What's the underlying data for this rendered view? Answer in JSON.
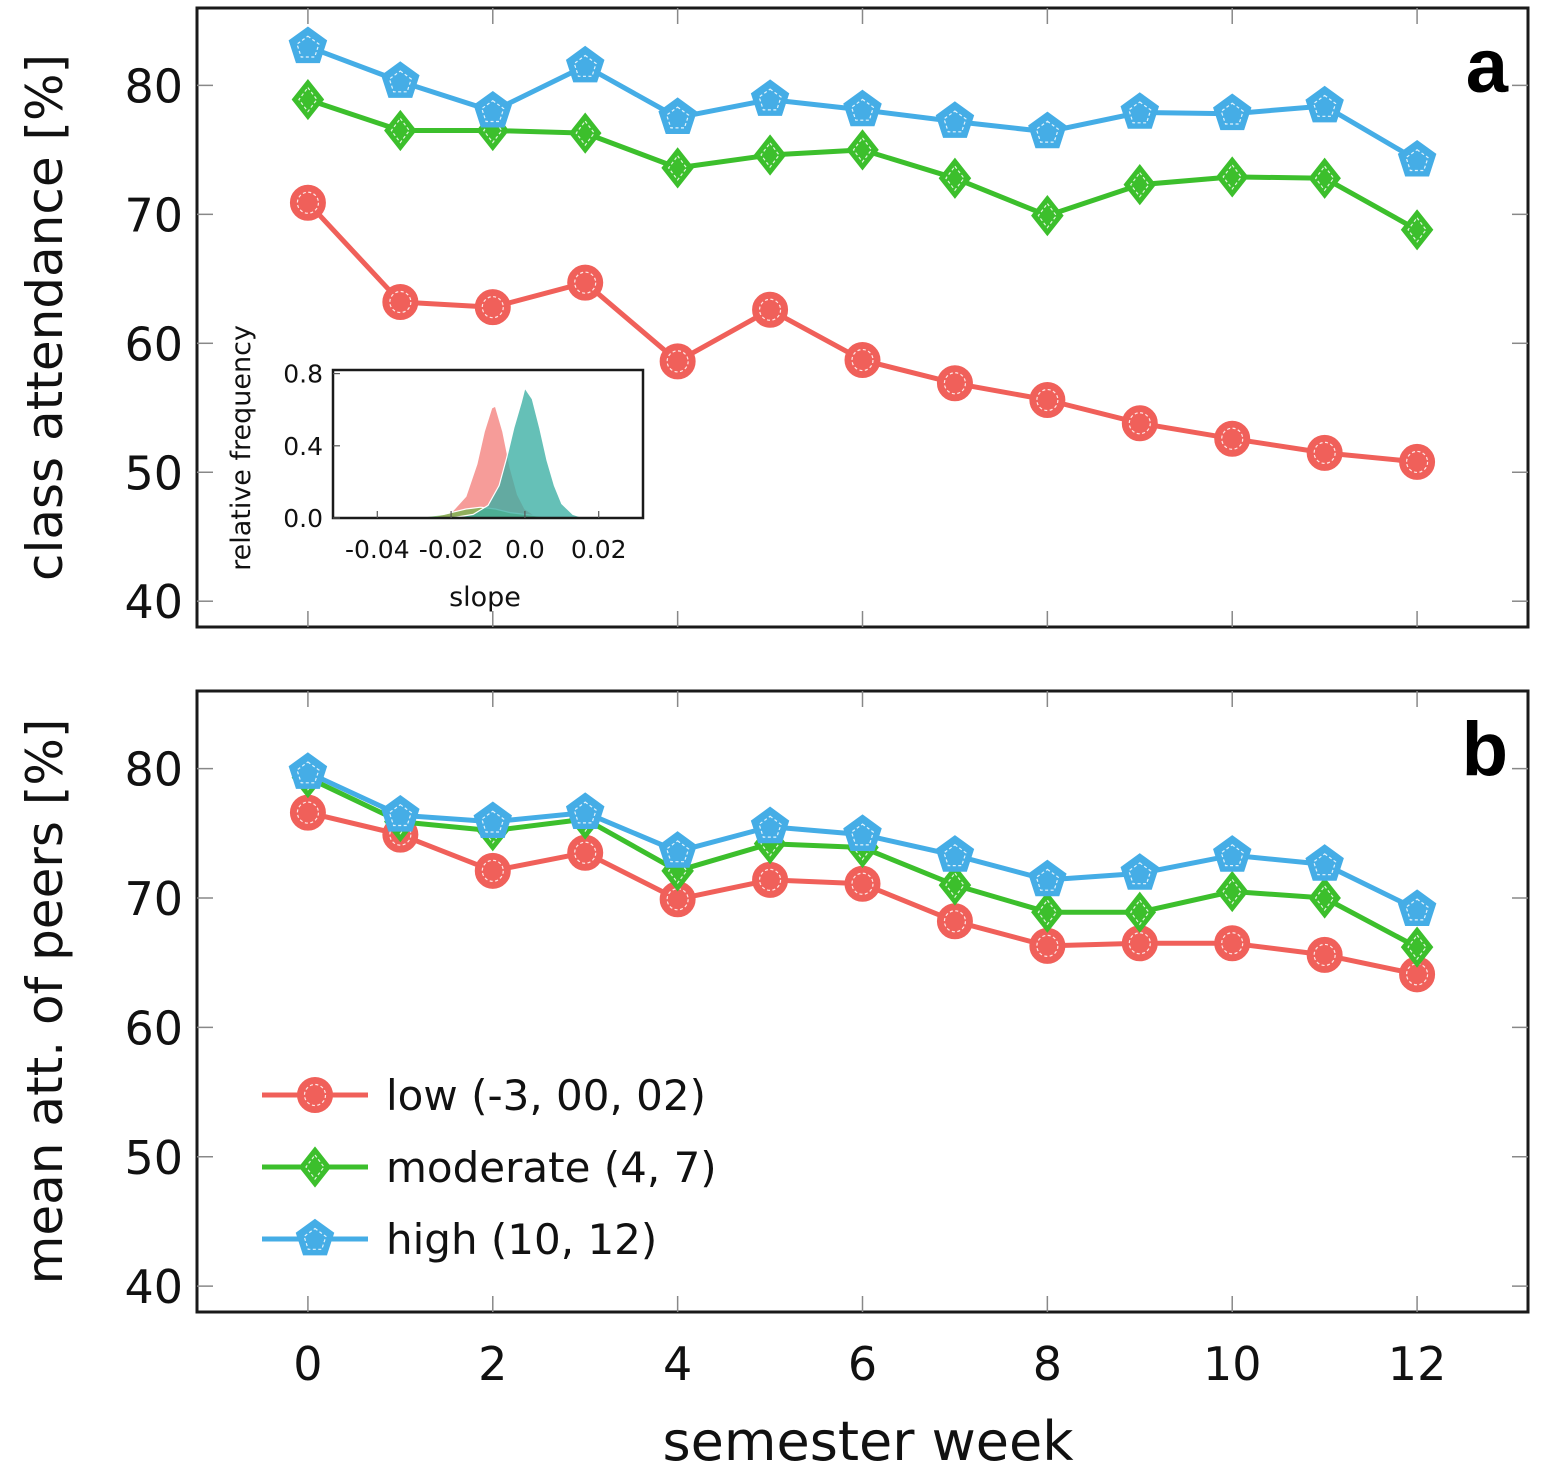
{
  "chart_data": [
    {
      "type": "line",
      "panel_label": "a",
      "ylabel": "class attendance [%]",
      "xlabel": "",
      "ylim": [
        38,
        86
      ],
      "yticks": [
        40,
        50,
        60,
        70,
        80
      ],
      "xlim": [
        -1.2,
        13.2
      ],
      "x": [
        0,
        1,
        2,
        3,
        4,
        5,
        6,
        7,
        8,
        9,
        10,
        11,
        12
      ],
      "series": [
        {
          "name": "low (-3, 00, 02)",
          "marker": "circle",
          "color": "#f0605a",
          "values": [
            70.9,
            63.2,
            62.8,
            64.7,
            58.6,
            62.6,
            58.7,
            56.9,
            55.6,
            53.8,
            52.6,
            51.5,
            50.8
          ]
        },
        {
          "name": "moderate (4, 7)",
          "marker": "diamond",
          "color": "#3cbf2c",
          "values": [
            78.9,
            76.5,
            76.5,
            76.3,
            73.6,
            74.6,
            75.0,
            72.8,
            69.9,
            72.3,
            72.9,
            72.8,
            68.8
          ]
        },
        {
          "name": "high (10, 12)",
          "marker": "pentagon",
          "color": "#45ade6",
          "values": [
            83.0,
            80.3,
            78.0,
            81.5,
            77.5,
            78.9,
            78.1,
            77.2,
            76.4,
            77.9,
            77.8,
            78.4,
            74.2
          ]
        }
      ],
      "inset": {
        "type": "area",
        "xlabel": "slope",
        "ylabel": "relative frequency",
        "xlim": [
          -0.052,
          0.032
        ],
        "ylim": [
          0,
          0.82
        ],
        "xticks": [
          -0.04,
          -0.02,
          0.0,
          0.02
        ],
        "xtick_labels": [
          "-0.04",
          "-0.02",
          "0.0",
          "0.02"
        ],
        "yticks": [
          0.0,
          0.4,
          0.8
        ],
        "ytick_labels": [
          "0.0",
          "0.4",
          "0.8"
        ],
        "series": [
          {
            "name": "low",
            "color": "#f0605a",
            "x": [
              -0.052,
              -0.03,
              -0.024,
              -0.02,
              -0.016,
              -0.013,
              -0.011,
              -0.009,
              -0.008,
              -0.006,
              -0.004,
              -0.002,
              0.0,
              0.003,
              0.008,
              0.032
            ],
            "y": [
              0.0,
              0.0,
              0.01,
              0.03,
              0.12,
              0.3,
              0.48,
              0.61,
              0.62,
              0.48,
              0.28,
              0.13,
              0.05,
              0.01,
              0.0,
              0.0
            ]
          },
          {
            "name": "moderate",
            "color": "#3cbf2c",
            "x": [
              -0.052,
              -0.03,
              -0.022,
              -0.016,
              -0.012,
              -0.008,
              -0.004,
              0.0,
              0.004,
              0.008,
              0.012,
              0.032
            ],
            "y": [
              0.0,
              0.0,
              0.02,
              0.05,
              0.06,
              0.05,
              0.03,
              0.02,
              0.01,
              0.005,
              0.0,
              0.0
            ]
          },
          {
            "name": "high",
            "color": "#3aaea3",
            "x": [
              -0.052,
              -0.02,
              -0.014,
              -0.01,
              -0.007,
              -0.005,
              -0.003,
              -0.001,
              0.0,
              0.002,
              0.004,
              0.006,
              0.008,
              0.01,
              0.013,
              0.016,
              0.032
            ],
            "y": [
              0.0,
              0.0,
              0.02,
              0.07,
              0.18,
              0.33,
              0.5,
              0.64,
              0.72,
              0.66,
              0.5,
              0.32,
              0.18,
              0.08,
              0.02,
              0.0,
              0.0
            ]
          }
        ]
      }
    },
    {
      "type": "line",
      "panel_label": "b",
      "ylabel": "mean att. of peers [%]",
      "xlabel": "semester week",
      "ylim": [
        38,
        86
      ],
      "yticks": [
        40,
        50,
        60,
        70,
        80
      ],
      "xlim": [
        -1.2,
        13.2
      ],
      "xticks": [
        0,
        2,
        4,
        6,
        8,
        10,
        12
      ],
      "x": [
        0,
        1,
        2,
        3,
        4,
        5,
        6,
        7,
        8,
        9,
        10,
        11,
        12
      ],
      "legend_position": "lower-left",
      "series": [
        {
          "name": "low (-3, 00, 02)",
          "marker": "circle",
          "color": "#f0605a",
          "values": [
            76.6,
            74.9,
            72.1,
            73.5,
            69.9,
            71.4,
            71.1,
            68.2,
            66.3,
            66.5,
            66.5,
            65.6,
            64.1
          ]
        },
        {
          "name": "moderate (4, 7)",
          "marker": "diamond",
          "color": "#3cbf2c",
          "values": [
            79.3,
            75.9,
            75.2,
            76.1,
            72.1,
            74.2,
            73.9,
            71.0,
            68.9,
            68.9,
            70.5,
            70.0,
            66.2
          ]
        },
        {
          "name": "high (10, 12)",
          "marker": "pentagon",
          "color": "#45ade6",
          "values": [
            79.7,
            76.4,
            75.9,
            76.6,
            73.6,
            75.5,
            74.9,
            73.3,
            71.4,
            71.9,
            73.3,
            72.6,
            69.1
          ]
        }
      ]
    }
  ]
}
